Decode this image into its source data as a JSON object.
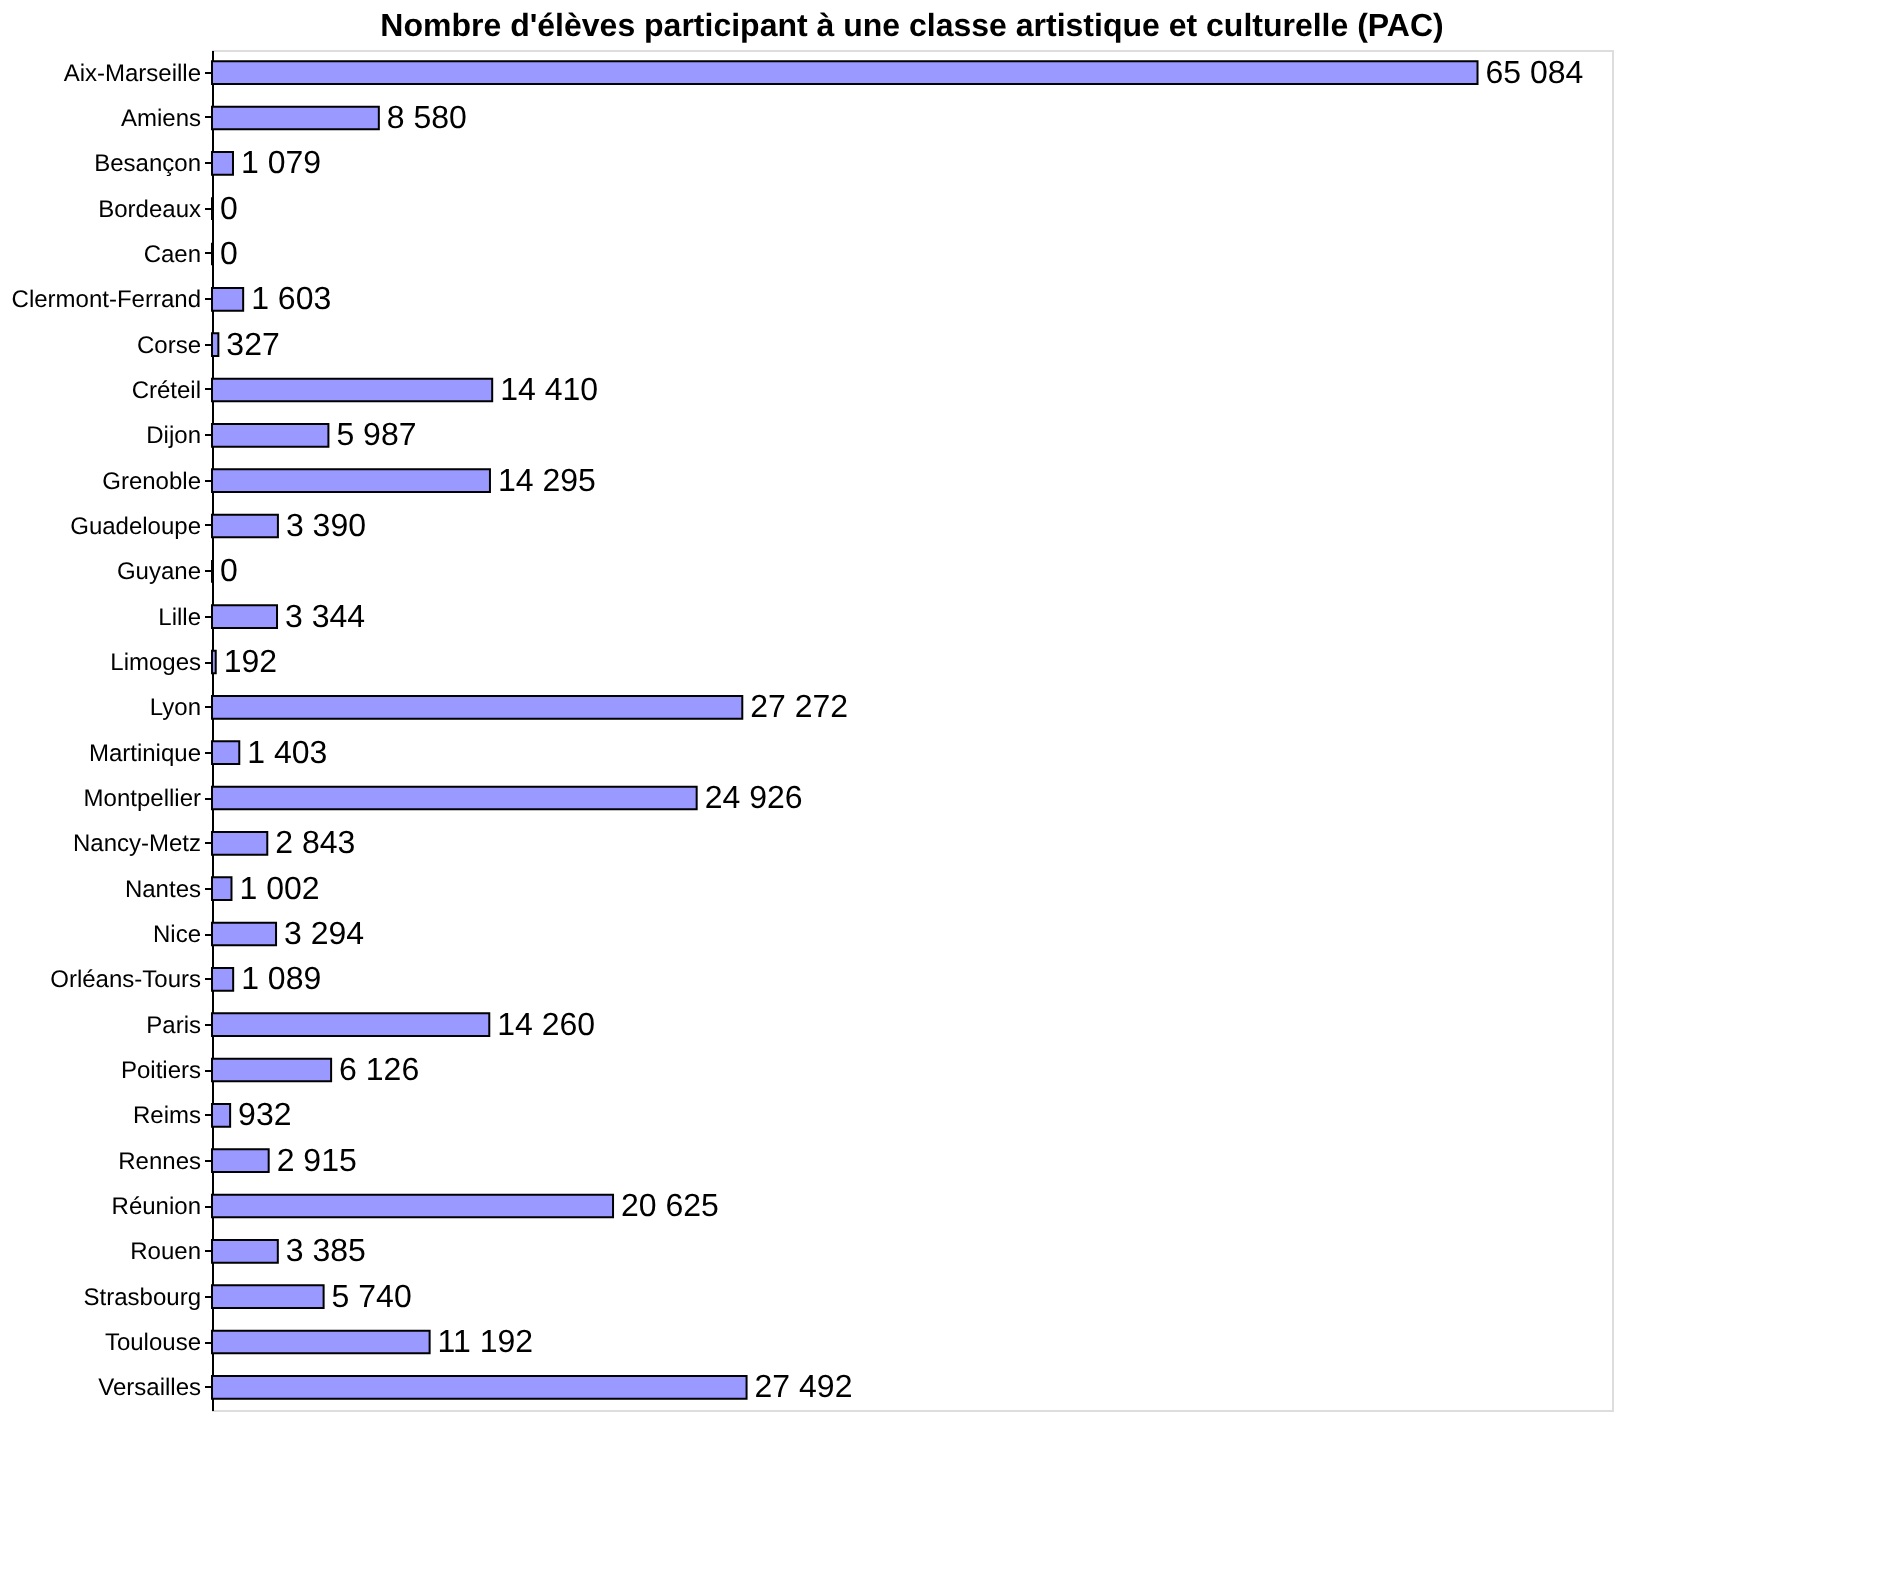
{
  "chart_data": {
    "type": "bar",
    "orientation": "horizontal",
    "title": "Nombre d'élèves participant à une classe artistique et culturelle (PAC)",
    "categories": [
      "Aix-Marseille",
      "Amiens",
      "Besançon",
      "Bordeaux",
      "Caen",
      "Clermont-Ferrand",
      "Corse",
      "Créteil",
      "Dijon",
      "Grenoble",
      "Guadeloupe",
      "Guyane",
      "Lille",
      "Limoges",
      "Lyon",
      "Martinique",
      "Montpellier",
      "Nancy-Metz",
      "Nantes",
      "Nice",
      "Orléans-Tours",
      "Paris",
      "Poitiers",
      "Reims",
      "Rennes",
      "Réunion",
      "Rouen",
      "Strasbourg",
      "Toulouse",
      "Versailles"
    ],
    "values": [
      65084,
      8580,
      1079,
      0,
      0,
      1603,
      327,
      14410,
      5987,
      14295,
      3390,
      0,
      3344,
      192,
      27272,
      1403,
      24926,
      2843,
      1002,
      3294,
      1089,
      14260,
      6126,
      932,
      2915,
      20625,
      3385,
      5740,
      11192,
      27492
    ],
    "value_labels": [
      "65 084",
      "8 580",
      "1 079",
      "0",
      "0",
      "1 603",
      "327",
      "14 410",
      "5 987",
      "14 295",
      "3 390",
      "0",
      "3 344",
      "192",
      "27 272",
      "1 403",
      "24 926",
      "2 843",
      "1 002",
      "3 294",
      "1 089",
      "14 260",
      "6 126",
      "932",
      "2 915",
      "20 625",
      "3 385",
      "5 740",
      "11 192",
      "27 492"
    ],
    "color": "#9999ff",
    "xlim": [
      0,
      72000
    ],
    "tick_labels": "y"
  }
}
